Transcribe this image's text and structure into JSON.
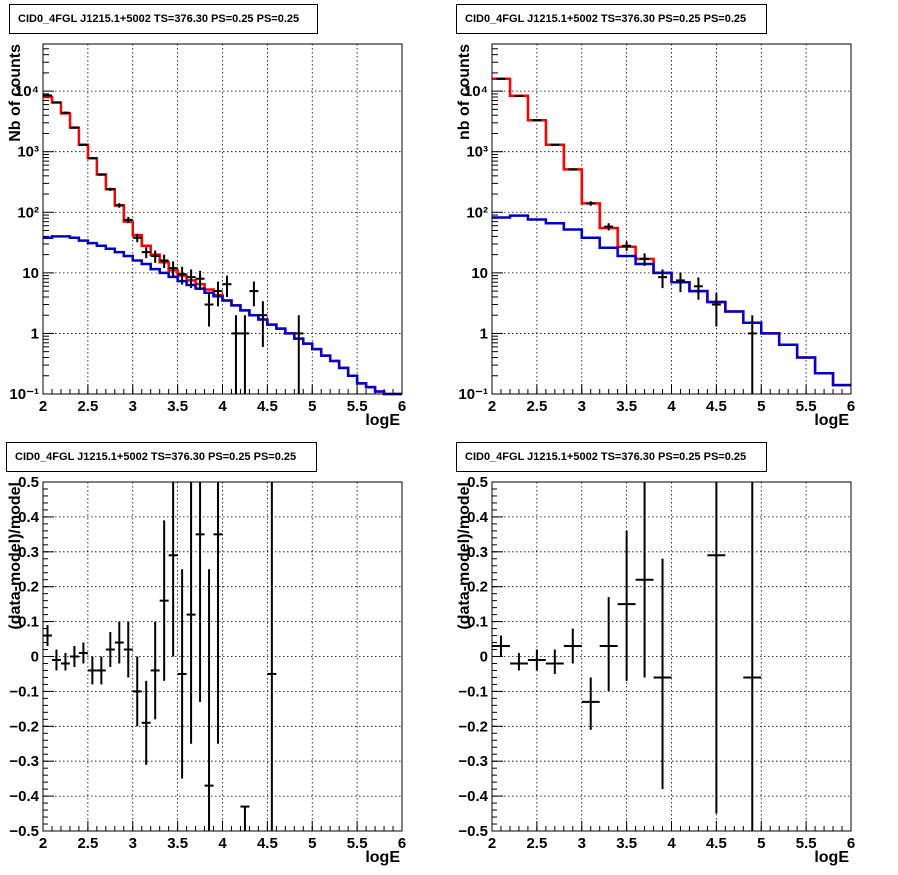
{
  "colors": {
    "total_model": "#ff0000",
    "component_model": "#0000cc",
    "data": "#000000"
  },
  "chart_data": [
    {
      "type": "line",
      "title": "CID0_4FGL J1215.1+5002 TS=376.30 PS=0.25 PS=0.25",
      "xlabel": "logE",
      "ylabel": "Nb of counts",
      "yscale": "log",
      "xlim": [
        2,
        6
      ],
      "ylim": [
        0.1,
        60000
      ],
      "grid": true,
      "x_ticks": [
        2,
        2.5,
        3,
        3.5,
        4,
        4.5,
        5,
        5.5,
        6
      ],
      "x_tick_labels": [
        "2",
        "2.5",
        "3",
        "3.5",
        "4",
        "4.5",
        "5",
        "5.5",
        "6"
      ],
      "y_ticks": [
        0.1,
        1,
        10,
        100,
        1000,
        10000
      ],
      "y_tick_labels": [
        "10⁻¹",
        "1",
        "10",
        "10²",
        "10³",
        "10⁴"
      ],
      "bin_edges": [
        2.0,
        2.1,
        2.2,
        2.3,
        2.4,
        2.5,
        2.6,
        2.7,
        2.8,
        2.9,
        3.0,
        3.1,
        3.2,
        3.3,
        3.4,
        3.5,
        3.6,
        3.7,
        3.8,
        3.9,
        4.0,
        4.1,
        4.2,
        4.3,
        4.4,
        4.5,
        4.6,
        4.7,
        4.8,
        4.9,
        5.0,
        5.1,
        5.2,
        5.3,
        5.4,
        5.5,
        5.6,
        5.7,
        5.8,
        5.9,
        6.0
      ],
      "series": [
        {
          "style": "step",
          "color": "#ff0000",
          "values": [
            8000,
            6500,
            4300,
            2500,
            1300,
            780,
            420,
            240,
            130,
            70,
            42,
            28,
            20,
            15,
            11,
            9,
            7.5,
            6.5,
            5.3,
            4.3,
            3.5,
            2.9,
            2.4,
            2.0,
            1.7,
            1.4,
            1.2,
            1.0,
            0.82,
            0.68,
            0.55,
            0.43,
            0.35,
            0.27,
            0.2,
            0.15,
            0.13,
            0.11,
            0.1,
            0.1
          ]
        },
        {
          "style": "step",
          "color": "#0000cc",
          "values": [
            38,
            40,
            40,
            38,
            34,
            31,
            28,
            25,
            22,
            19,
            16,
            14,
            11.5,
            10,
            8.6,
            7.3,
            6.3,
            5.5,
            4.7,
            4.1,
            3.5,
            2.9,
            2.4,
            2.0,
            1.7,
            1.4,
            1.2,
            1.0,
            0.82,
            0.68,
            0.55,
            0.43,
            0.35,
            0.27,
            0.2,
            0.15,
            0.13,
            0.11,
            0.1,
            0.1
          ]
        }
      ],
      "points": [
        {
          "x": 2.05,
          "y": 8500,
          "ylo": 8300,
          "yhi": 8700
        },
        {
          "x": 2.15,
          "y": 6500,
          "ylo": 6300,
          "yhi": 6700
        },
        {
          "x": 2.25,
          "y": 4400,
          "ylo": 4200,
          "yhi": 4600
        },
        {
          "x": 2.35,
          "y": 2500,
          "ylo": 2400,
          "yhi": 2600
        },
        {
          "x": 2.45,
          "y": 1300,
          "ylo": 1250,
          "yhi": 1350
        },
        {
          "x": 2.55,
          "y": 780,
          "ylo": 750,
          "yhi": 810
        },
        {
          "x": 2.65,
          "y": 420,
          "ylo": 400,
          "yhi": 440
        },
        {
          "x": 2.75,
          "y": 240,
          "ylo": 225,
          "yhi": 255
        },
        {
          "x": 2.85,
          "y": 130,
          "ylo": 119,
          "yhi": 141
        },
        {
          "x": 2.95,
          "y": 75,
          "ylo": 66,
          "yhi": 84
        },
        {
          "x": 3.05,
          "y": 38,
          "ylo": 32,
          "yhi": 44
        },
        {
          "x": 3.15,
          "y": 22,
          "ylo": 17.5,
          "yhi": 26.5
        },
        {
          "x": 3.25,
          "y": 19,
          "ylo": 14.6,
          "yhi": 23.4
        },
        {
          "x": 3.35,
          "y": 16,
          "ylo": 12,
          "yhi": 20
        },
        {
          "x": 3.45,
          "y": 12,
          "ylo": 8.5,
          "yhi": 15.5
        },
        {
          "x": 3.55,
          "y": 9.5,
          "ylo": 6.4,
          "yhi": 12.6
        },
        {
          "x": 3.65,
          "y": 8.5,
          "ylo": 5.6,
          "yhi": 11.4
        },
        {
          "x": 3.75,
          "y": 8,
          "ylo": 5.2,
          "yhi": 10.8
        },
        {
          "x": 3.85,
          "y": 3,
          "ylo": 1.3,
          "yhi": 4.7
        },
        {
          "x": 3.95,
          "y": 5,
          "ylo": 2.8,
          "yhi": 7.2
        },
        {
          "x": 4.05,
          "y": 6.5,
          "ylo": 4,
          "yhi": 9
        },
        {
          "x": 4.15,
          "y": 1,
          "ylo": 0.1,
          "yhi": 2
        },
        {
          "x": 4.25,
          "y": 1,
          "ylo": 0.1,
          "yhi": 2
        },
        {
          "x": 4.35,
          "y": 5,
          "ylo": 2.8,
          "yhi": 7.2
        },
        {
          "x": 4.45,
          "y": 2,
          "ylo": 0.6,
          "yhi": 3.4
        },
        {
          "x": 4.85,
          "y": 1,
          "ylo": 0.1,
          "yhi": 2
        }
      ]
    },
    {
      "type": "line",
      "title": "CID0_4FGL J1215.1+5002 TS=376.30 PS=0.25 PS=0.25",
      "xlabel": "logE",
      "ylabel": "nb of counts",
      "yscale": "log",
      "xlim": [
        2,
        6
      ],
      "ylim": [
        0.1,
        60000
      ],
      "grid": true,
      "x_ticks": [
        2,
        2.5,
        3,
        3.5,
        4,
        4.5,
        5,
        5.5,
        6
      ],
      "x_tick_labels": [
        "2",
        "2.5",
        "3",
        "3.5",
        "4",
        "4.5",
        "5",
        "5.5",
        "6"
      ],
      "y_ticks": [
        0.1,
        1,
        10,
        100,
        1000,
        10000
      ],
      "y_tick_labels": [
        "10⁻¹",
        "1",
        "10",
        "10²",
        "10³",
        "10⁴"
      ],
      "bin_edges": [
        2.0,
        2.2,
        2.4,
        2.6,
        2.8,
        3.0,
        3.2,
        3.4,
        3.6,
        3.8,
        4.0,
        4.2,
        4.4,
        4.6,
        4.8,
        5.0,
        5.2,
        5.4,
        5.6,
        5.8,
        6.0
      ],
      "series": [
        {
          "style": "step",
          "color": "#ff0000",
          "values": [
            16000,
            8400,
            3300,
            1300,
            510,
            140,
            55,
            27,
            17,
            10,
            7,
            5,
            3.3,
            2.3,
            1.5,
            1.0,
            0.65,
            0.4,
            0.22,
            0.14
          ]
        },
        {
          "style": "step",
          "color": "#0000cc",
          "values": [
            82,
            88,
            76,
            66,
            52,
            38,
            26,
            19,
            14,
            10,
            7,
            5,
            3.3,
            2.3,
            1.5,
            1.0,
            0.65,
            0.4,
            0.22,
            0.14
          ]
        }
      ],
      "points": [
        {
          "x": 2.1,
          "y": 16000,
          "ylo": 15700,
          "yhi": 16300
        },
        {
          "x": 2.3,
          "y": 8300,
          "ylo": 8100,
          "yhi": 8500
        },
        {
          "x": 2.5,
          "y": 3300,
          "ylo": 3200,
          "yhi": 3400
        },
        {
          "x": 2.7,
          "y": 1300,
          "ylo": 1260,
          "yhi": 1340
        },
        {
          "x": 2.9,
          "y": 510,
          "ylo": 490,
          "yhi": 530
        },
        {
          "x": 3.1,
          "y": 140,
          "ylo": 128,
          "yhi": 152
        },
        {
          "x": 3.3,
          "y": 58,
          "ylo": 50,
          "yhi": 66
        },
        {
          "x": 3.5,
          "y": 28,
          "ylo": 23,
          "yhi": 33
        },
        {
          "x": 3.7,
          "y": 17,
          "ylo": 13,
          "yhi": 21
        },
        {
          "x": 3.9,
          "y": 8.5,
          "ylo": 5.6,
          "yhi": 11.4
        },
        {
          "x": 4.1,
          "y": 7.5,
          "ylo": 4.8,
          "yhi": 10.2
        },
        {
          "x": 4.3,
          "y": 6,
          "ylo": 3.6,
          "yhi": 8.4
        },
        {
          "x": 4.5,
          "y": 3,
          "ylo": 1.3,
          "yhi": 4.7
        },
        {
          "x": 4.9,
          "y": 1,
          "ylo": 0.1,
          "yhi": 2
        }
      ]
    },
    {
      "type": "scatter",
      "title": "CID0_4FGL J1215.1+5002 TS=376.30 PS=0.25 PS=0.25",
      "xlabel": "logE",
      "ylabel": "(data-model)/model",
      "yscale": "linear",
      "xlim": [
        2,
        6
      ],
      "ylim": [
        -0.5,
        0.5
      ],
      "grid": true,
      "x_ticks": [
        2,
        2.5,
        3,
        3.5,
        4,
        4.5,
        5,
        5.5,
        6
      ],
      "x_tick_labels": [
        "2",
        "2.5",
        "3",
        "3.5",
        "4",
        "4.5",
        "5",
        "5.5",
        "6"
      ],
      "y_ticks": [
        -0.5,
        -0.4,
        -0.3,
        -0.2,
        -0.1,
        0,
        0.1,
        0.2,
        0.3,
        0.4,
        0.5
      ],
      "y_tick_labels": [
        "−0.5",
        "−0.4",
        "−0.3",
        "−0.2",
        "−0.1",
        "0",
        "0.1",
        "0.2",
        "0.3",
        "0.4",
        "0.5"
      ],
      "xerr": 0.05,
      "points": [
        {
          "x": 2.05,
          "y": 0.06,
          "ylo": 0.03,
          "yhi": 0.09
        },
        {
          "x": 2.15,
          "y": -0.01,
          "ylo": -0.04,
          "yhi": 0.02
        },
        {
          "x": 2.25,
          "y": -0.02,
          "ylo": -0.04,
          "yhi": 0.01
        },
        {
          "x": 2.35,
          "y": 0.0,
          "ylo": -0.03,
          "yhi": 0.03
        },
        {
          "x": 2.45,
          "y": 0.01,
          "ylo": -0.02,
          "yhi": 0.04
        },
        {
          "x": 2.55,
          "y": -0.04,
          "ylo": -0.08,
          "yhi": 0.0
        },
        {
          "x": 2.65,
          "y": -0.04,
          "ylo": -0.08,
          "yhi": 0.0
        },
        {
          "x": 2.75,
          "y": 0.02,
          "ylo": -0.03,
          "yhi": 0.07
        },
        {
          "x": 2.85,
          "y": 0.04,
          "ylo": -0.02,
          "yhi": 0.1
        },
        {
          "x": 2.95,
          "y": 0.02,
          "ylo": -0.06,
          "yhi": 0.1
        },
        {
          "x": 3.05,
          "y": -0.1,
          "ylo": -0.2,
          "yhi": -0.0
        },
        {
          "x": 3.15,
          "y": -0.19,
          "ylo": -0.31,
          "yhi": -0.07
        },
        {
          "x": 3.25,
          "y": -0.04,
          "ylo": -0.18,
          "yhi": 0.1
        },
        {
          "x": 3.35,
          "y": 0.16,
          "ylo": -0.07,
          "yhi": 0.39
        },
        {
          "x": 3.45,
          "y": 0.29,
          "ylo": 0.0,
          "yhi": 0.5
        },
        {
          "x": 3.55,
          "y": -0.05,
          "ylo": -0.35,
          "yhi": 0.25
        },
        {
          "x": 3.65,
          "y": 0.12,
          "ylo": -0.25,
          "yhi": 0.5
        },
        {
          "x": 3.75,
          "y": 0.35,
          "ylo": -0.13,
          "yhi": 0.5
        },
        {
          "x": 3.85,
          "y": -0.37,
          "ylo": -0.5,
          "yhi": 0.25
        },
        {
          "x": 3.95,
          "y": 0.35,
          "ylo": -0.25,
          "yhi": 0.5
        },
        {
          "x": 4.25,
          "y": -0.43,
          "ylo": -0.5,
          "yhi": -0.43
        },
        {
          "x": 4.55,
          "y": -0.05,
          "ylo": -0.5,
          "yhi": 0.5
        }
      ]
    },
    {
      "type": "scatter",
      "title": "CID0_4FGL J1215.1+5002 TS=376.30 PS=0.25 PS=0.25",
      "xlabel": "logE",
      "ylabel": "(data-model)/model",
      "yscale": "linear",
      "xlim": [
        2,
        6
      ],
      "ylim": [
        -0.5,
        0.5
      ],
      "grid": true,
      "x_ticks": [
        2,
        2.5,
        3,
        3.5,
        4,
        4.5,
        5,
        5.5,
        6
      ],
      "x_tick_labels": [
        "2",
        "2.5",
        "3",
        "3.5",
        "4",
        "4.5",
        "5",
        "5.5",
        "6"
      ],
      "y_ticks": [
        -0.5,
        -0.4,
        -0.3,
        -0.2,
        -0.1,
        0,
        0.1,
        0.2,
        0.3,
        0.4,
        0.5
      ],
      "y_tick_labels": [
        "−0.5",
        "−0.4",
        "−0.3",
        "−0.2",
        "−0.1",
        "0",
        "0.1",
        "0.2",
        "0.3",
        "0.4",
        "0.5"
      ],
      "xerr": 0.1,
      "points": [
        {
          "x": 2.1,
          "y": 0.03,
          "ylo": 0.0,
          "yhi": 0.06
        },
        {
          "x": 2.3,
          "y": -0.02,
          "ylo": -0.04,
          "yhi": 0.01
        },
        {
          "x": 2.5,
          "y": -0.01,
          "ylo": -0.04,
          "yhi": 0.02
        },
        {
          "x": 2.7,
          "y": -0.02,
          "ylo": -0.05,
          "yhi": 0.02
        },
        {
          "x": 2.9,
          "y": 0.03,
          "ylo": -0.02,
          "yhi": 0.08
        },
        {
          "x": 3.1,
          "y": -0.13,
          "ylo": -0.21,
          "yhi": -0.06
        },
        {
          "x": 3.3,
          "y": 0.03,
          "ylo": -0.1,
          "yhi": 0.17
        },
        {
          "x": 3.5,
          "y": 0.15,
          "ylo": -0.07,
          "yhi": 0.36
        },
        {
          "x": 3.7,
          "y": 0.22,
          "ylo": -0.06,
          "yhi": 0.5
        },
        {
          "x": 3.9,
          "y": -0.06,
          "ylo": -0.38,
          "yhi": 0.28
        },
        {
          "x": 4.5,
          "y": 0.29,
          "ylo": -0.45,
          "yhi": 0.5
        },
        {
          "x": 4.9,
          "y": -0.06,
          "ylo": -0.5,
          "yhi": 0.5
        }
      ]
    }
  ]
}
